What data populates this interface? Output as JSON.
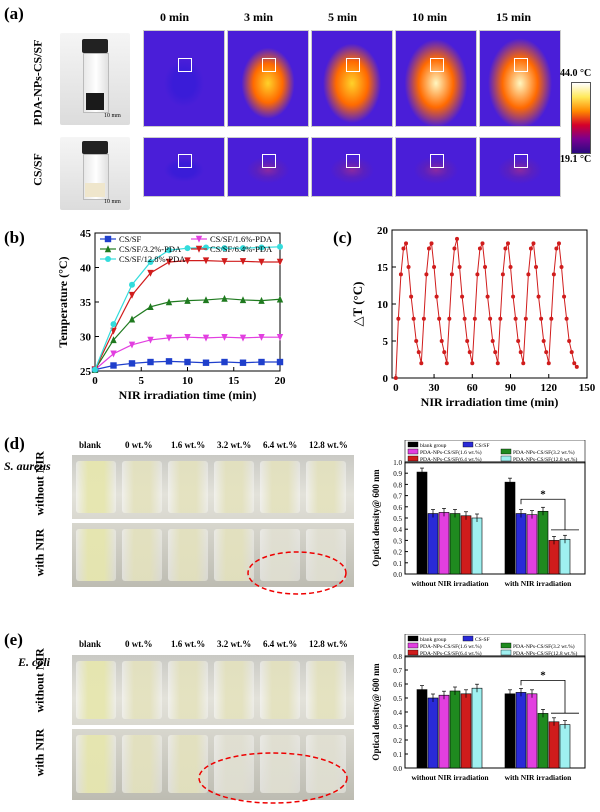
{
  "panel_a": {
    "label": "(a)",
    "times": [
      "0 min",
      "3 min",
      "5 min",
      "10 min",
      "15 min"
    ],
    "rows": [
      "PDA-NPs-CS/SF",
      "CS/SF"
    ],
    "scale_photo": "10 mm",
    "colorbar_max": "44.0 °C",
    "colorbar_min": "19.1 °C",
    "hot_intensity": [
      0.0,
      0.55,
      0.75,
      0.95,
      1.0
    ],
    "cs_intensity": [
      0.0,
      0.12,
      0.15,
      0.18,
      0.18
    ]
  },
  "panel_b": {
    "label": "(b)"
  },
  "panel_c": {
    "label": "(c)"
  },
  "panel_d": {
    "label": "(d)",
    "organism": "S. aureus",
    "tubes": [
      "blank",
      "0 wt.%",
      "1.6 wt.%",
      "3.2 wt.%",
      "6.4 wt.%",
      "12.8 wt.%"
    ],
    "row_top": "without NIR",
    "row_bottom": "with NIR"
  },
  "panel_e": {
    "label": "(e)",
    "organism": "E. coli",
    "tubes": [
      "blank",
      "0 wt.%",
      "1.6 wt.%",
      "3.2 wt.%",
      "6.4 wt.%",
      "12.8 wt.%"
    ],
    "row_top": "without NIR",
    "row_bottom": "with NIR"
  },
  "chart_data": [
    {
      "type": "line",
      "xlabel": "NIR irradiation time (min)",
      "ylabel": "Temperature (°C)",
      "xlim": [
        0,
        20
      ],
      "ylim": [
        25,
        45
      ],
      "xticks": [
        0,
        5,
        10,
        15,
        20
      ],
      "yticks": [
        25,
        30,
        35,
        40,
        45
      ],
      "x": [
        0,
        2,
        4,
        6,
        8,
        10,
        12,
        14,
        16,
        18,
        20
      ],
      "legend_position": "top-left",
      "series": [
        {
          "name": "CS/SF",
          "color": "#1f3fcc",
          "marker": "square",
          "values": [
            25.2,
            25.8,
            26.1,
            26.3,
            26.4,
            26.3,
            26.2,
            26.3,
            26.2,
            26.3,
            26.3
          ]
        },
        {
          "name": "CS/SF/1.6%-PDA",
          "color": "#e23fe0",
          "marker": "triangle-down",
          "values": [
            25.2,
            27.5,
            28.8,
            29.5,
            29.8,
            29.9,
            29.8,
            29.9,
            29.8,
            29.9,
            29.9
          ]
        },
        {
          "name": "CS/SF/3.2%-PDA",
          "color": "#1f7a1f",
          "marker": "triangle-up",
          "values": [
            25.2,
            29.5,
            32.5,
            34.3,
            35.0,
            35.2,
            35.3,
            35.5,
            35.3,
            35.2,
            35.4
          ]
        },
        {
          "name": "CS/SF/6.4%-PDA",
          "color": "#d01c1c",
          "marker": "triangle-down",
          "values": [
            25.2,
            30.8,
            36.0,
            39.2,
            40.8,
            41.0,
            41.0,
            40.9,
            40.9,
            40.8,
            40.8
          ]
        },
        {
          "name": "CS/SF/12.8%-PDA",
          "color": "#33dcdc",
          "marker": "star",
          "values": [
            25.2,
            31.8,
            37.5,
            40.8,
            42.5,
            42.8,
            42.9,
            42.8,
            42.8,
            42.9,
            43.0
          ]
        }
      ]
    },
    {
      "type": "line",
      "xlabel": "NIR irradiation time (min)",
      "ylabel": "△T (°C)",
      "xlim": [
        -3,
        150
      ],
      "ylim": [
        0,
        20
      ],
      "xticks": [
        0,
        30,
        60,
        90,
        120,
        150
      ],
      "yticks": [
        0,
        5,
        10,
        15,
        20
      ],
      "series": [
        {
          "name": "",
          "color": "#d01c1c",
          "x": [
            0,
            2,
            4,
            6,
            8,
            10,
            12,
            14,
            16,
            18,
            20,
            22,
            24,
            26,
            28,
            30,
            32,
            34,
            36,
            38,
            40,
            42,
            44,
            46,
            48,
            50,
            52,
            54,
            56,
            58,
            60,
            62,
            64,
            66,
            68,
            70,
            72,
            74,
            76,
            78,
            80,
            82,
            84,
            86,
            88,
            90,
            92,
            94,
            96,
            98,
            100,
            102,
            104,
            106,
            108,
            110,
            112,
            114,
            116,
            118,
            120,
            122,
            124,
            126,
            128,
            130,
            132,
            134,
            136,
            138,
            140,
            142
          ],
          "values": [
            0,
            8,
            14,
            17.5,
            18.2,
            15,
            11,
            8,
            5,
            3.5,
            2,
            8,
            14,
            17.5,
            18.2,
            15,
            11,
            8,
            5,
            3.5,
            2,
            8,
            14,
            17.5,
            18.8,
            15,
            11,
            8,
            5,
            3.5,
            2,
            8,
            14,
            17.5,
            18.2,
            15,
            11,
            8,
            5,
            3.5,
            2,
            8,
            14,
            17.5,
            18.2,
            15,
            11,
            8,
            5,
            3.5,
            2,
            8,
            14,
            17.5,
            18.2,
            15,
            11,
            8,
            5,
            3.5,
            2,
            8,
            14,
            17.5,
            18.2,
            15,
            11,
            8,
            5,
            3.5,
            2,
            1.5
          ]
        }
      ]
    },
    {
      "type": "bar",
      "ylabel": "Optical density@ 600 nm",
      "ylim": [
        0,
        1.0
      ],
      "yticks": [
        0.0,
        0.1,
        0.2,
        0.3,
        0.4,
        0.5,
        0.6,
        0.7,
        0.8,
        0.9,
        1.0
      ],
      "categories": [
        "without NIR irradiation",
        "with NIR irradiation"
      ],
      "significance": "*",
      "series": [
        {
          "name": "blank group",
          "color": "#000000",
          "values": [
            0.91,
            0.82
          ]
        },
        {
          "name": "CS/SF",
          "color": "#2a2ad8",
          "values": [
            0.54,
            0.54
          ]
        },
        {
          "name": "PDA-NPs-CS/SF(1.6 wt.%)",
          "color": "#e23fe0",
          "values": [
            0.55,
            0.53
          ]
        },
        {
          "name": "PDA-NPs-CS/SF(3.2 wt.%)",
          "color": "#1f8a1f",
          "values": [
            0.54,
            0.56
          ]
        },
        {
          "name": "PDA-NPs-CS/SF(6.4 wt.%)",
          "color": "#d01c1c",
          "values": [
            0.52,
            0.3
          ]
        },
        {
          "name": "PDA-NPs-CS/SF(12.8 wt.%)",
          "color": "#9ff0f0",
          "values": [
            0.5,
            0.31
          ]
        }
      ]
    },
    {
      "type": "bar",
      "ylabel": "Optical density@ 600 nm",
      "ylim": [
        0,
        0.8
      ],
      "yticks": [
        0.0,
        0.1,
        0.2,
        0.3,
        0.4,
        0.5,
        0.6,
        0.7,
        0.8
      ],
      "categories": [
        "without NIR irradiation",
        "with NIR irradiation"
      ],
      "significance": "*",
      "series": [
        {
          "name": "blank group",
          "color": "#000000",
          "values": [
            0.56,
            0.53
          ]
        },
        {
          "name": "CS-SF",
          "color": "#2a2ad8",
          "values": [
            0.5,
            0.54
          ]
        },
        {
          "name": "PDA-NPs-CS/SF(1.6 wt.%)",
          "color": "#e23fe0",
          "values": [
            0.52,
            0.53
          ]
        },
        {
          "name": "PDA-NPs-CS/SF(3.2 wt.%)",
          "color": "#1f8a1f",
          "values": [
            0.55,
            0.39
          ]
        },
        {
          "name": "PDA-NPs-CS/SF(6.4 wt.%)",
          "color": "#d01c1c",
          "values": [
            0.53,
            0.33
          ]
        },
        {
          "name": "PDA-NPs-CS/SF(12.8 wt.%)",
          "color": "#9ff0f0",
          "values": [
            0.57,
            0.31
          ]
        }
      ]
    }
  ]
}
